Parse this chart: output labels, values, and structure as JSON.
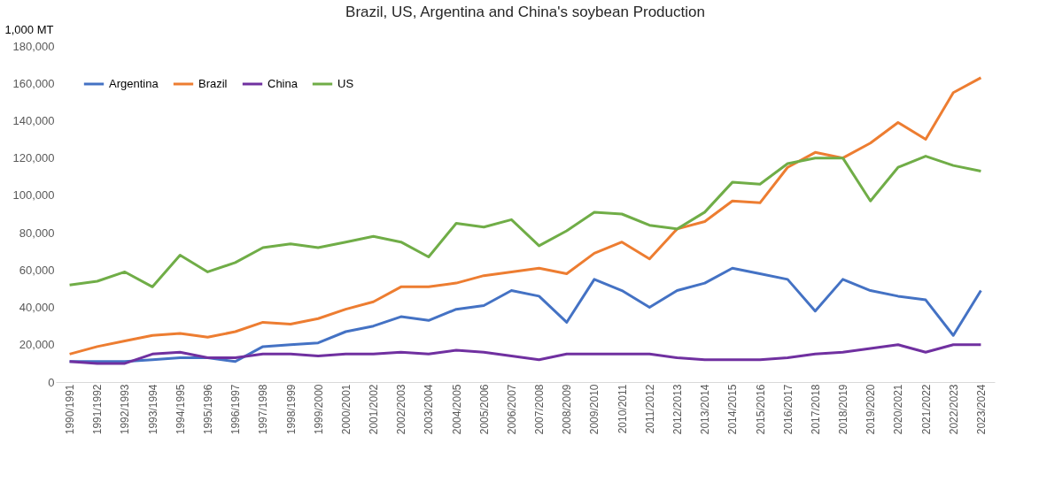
{
  "chart_data": {
    "type": "line",
    "title": "Brazil, US, Argentina and China's soybean Production",
    "ylabel": "1,000 MT",
    "categories": [
      "1990/1991",
      "1991/1992",
      "1992/1993",
      "1993/1994",
      "1994/1995",
      "1995/1996",
      "1996/1997",
      "1997/1998",
      "1998/1999",
      "1999/2000",
      "2000/2001",
      "2001/2002",
      "2002/2003",
      "2003/2004",
      "2004/2005",
      "2005/2006",
      "2006/2007",
      "2007/2008",
      "2008/2009",
      "2009/2010",
      "2010/2011",
      "2011/2012",
      "2012/2013",
      "2013/2014",
      "2014/2015",
      "2015/2016",
      "2016/2017",
      "2017/2018",
      "2018/2019",
      "2019/2020",
      "2020/2021",
      "2021/2022",
      "2022/2023",
      "2023/2024"
    ],
    "series": [
      {
        "name": "Argentina",
        "color": "#4472c4",
        "values": [
          11000,
          11000,
          11000,
          12000,
          13000,
          13000,
          11000,
          19000,
          20000,
          21000,
          27000,
          30000,
          35000,
          33000,
          39000,
          41000,
          49000,
          46000,
          32000,
          55000,
          49000,
          40000,
          49000,
          53000,
          61000,
          58000,
          55000,
          38000,
          55000,
          49000,
          46000,
          44000,
          25000,
          49000
        ]
      },
      {
        "name": "Brazil",
        "color": "#ed7d31",
        "values": [
          15000,
          19000,
          22000,
          25000,
          26000,
          24000,
          27000,
          32000,
          31000,
          34000,
          39000,
          43000,
          51000,
          51000,
          53000,
          57000,
          59000,
          61000,
          58000,
          69000,
          75000,
          66000,
          82000,
          86000,
          97000,
          96000,
          115000,
          123000,
          120000,
          128000,
          139000,
          130000,
          155000,
          163000
        ]
      },
      {
        "name": "China",
        "color": "#7030a0",
        "values": [
          11000,
          10000,
          10000,
          15000,
          16000,
          13000,
          13000,
          15000,
          15000,
          14000,
          15000,
          15000,
          16000,
          15000,
          17000,
          16000,
          14000,
          12000,
          15000,
          15000,
          15000,
          15000,
          13000,
          12000,
          12000,
          12000,
          13000,
          15000,
          16000,
          18000,
          20000,
          16000,
          20000,
          20000
        ]
      },
      {
        "name": "US",
        "color": "#70ad47",
        "values": [
          52000,
          54000,
          59000,
          51000,
          68000,
          59000,
          64000,
          72000,
          74000,
          72000,
          75000,
          78000,
          75000,
          67000,
          85000,
          83000,
          87000,
          73000,
          81000,
          91000,
          90000,
          84000,
          82000,
          91000,
          107000,
          106000,
          117000,
          120000,
          120000,
          97000,
          115000,
          121000,
          116000,
          113000
        ]
      }
    ],
    "ylim": [
      0,
      180000
    ],
    "yticks": [
      0,
      {
        "value": 20000,
        "label": "20,000"
      },
      {
        "value": 40000,
        "label": "40,000"
      },
      {
        "value": 60000,
        "label": "60,000"
      },
      {
        "value": 80000,
        "label": "80,000"
      },
      {
        "value": 100000,
        "label": "100,000"
      },
      {
        "value": 120000,
        "label": "120,000"
      },
      {
        "value": 140000,
        "label": "140,000"
      },
      {
        "value": 160000,
        "label": "160,000"
      },
      {
        "value": 180000,
        "label": "180,000"
      }
    ],
    "grid": false,
    "legend": "top left",
    "marker": "none",
    "line_style": "solid"
  }
}
